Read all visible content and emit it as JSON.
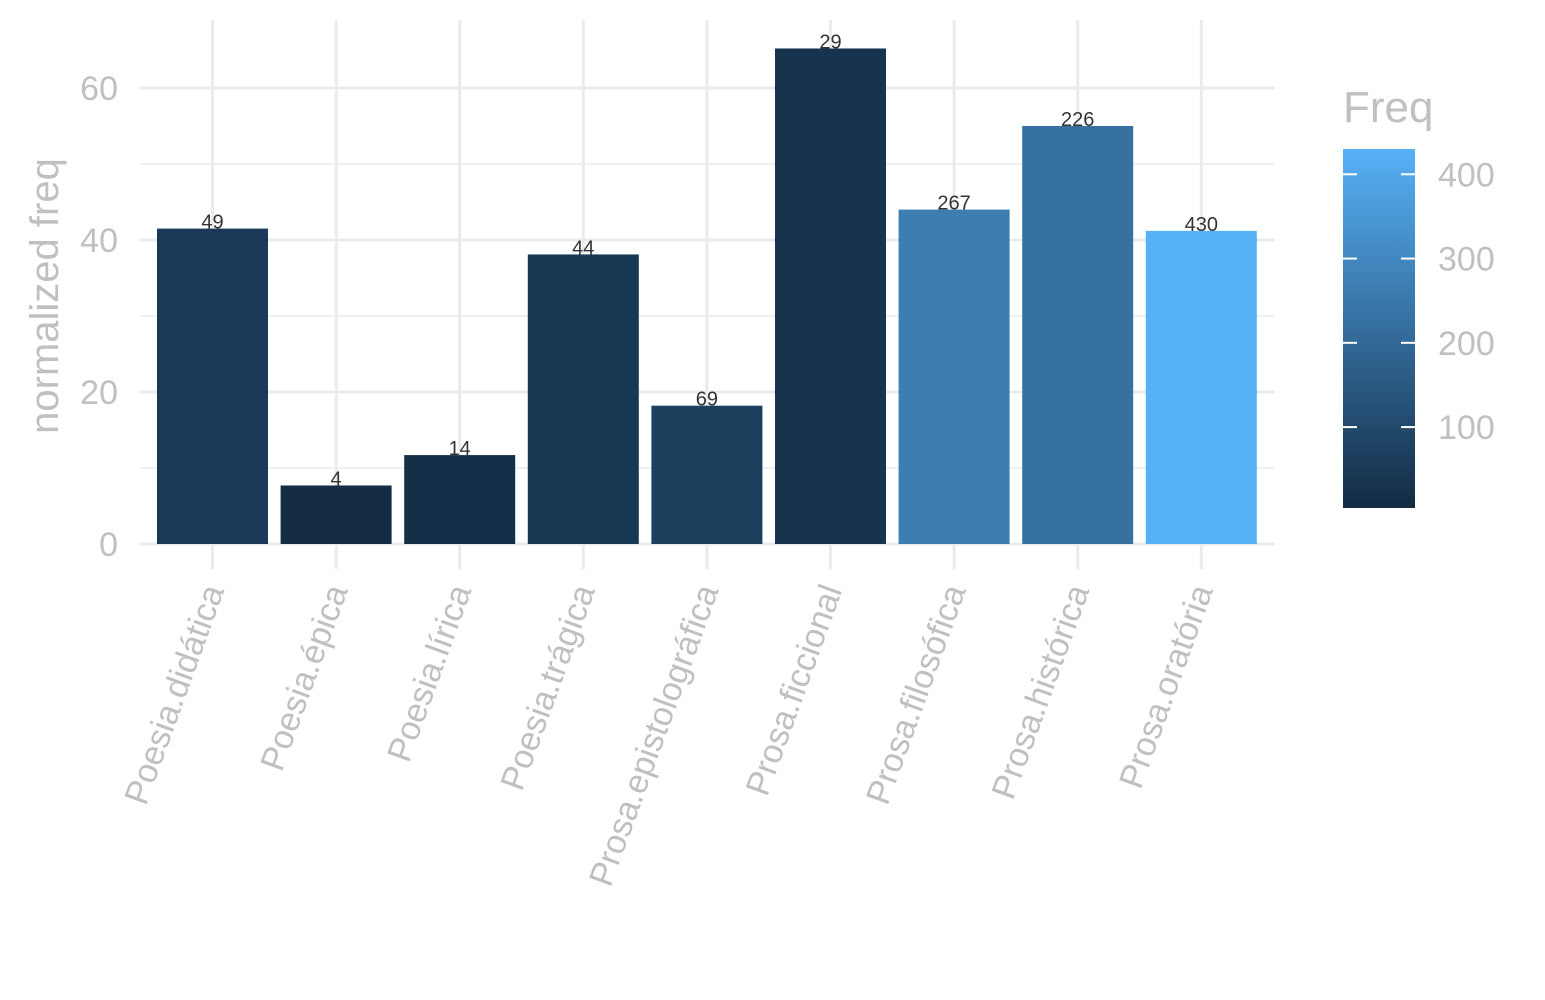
{
  "chart_data": {
    "type": "bar",
    "categories": [
      "Poesia.didática",
      "Poesia.épica",
      "Poesia.lírica",
      "Poesia.trágica",
      "Prosa.epistolográfica",
      "Prosa.ficcional",
      "Prosa.filosófica",
      "Prosa.histórica",
      "Prosa.oratória"
    ],
    "values": [
      41.5,
      7.7,
      11.7,
      38.1,
      18.2,
      65.2,
      44.0,
      55.0,
      41.2
    ],
    "freq": [
      49,
      4,
      14,
      44,
      69,
      29,
      267,
      226,
      430
    ],
    "xlabel": "",
    "ylabel": "normalized freq",
    "ylim": [
      0,
      68
    ],
    "yticks": [
      0,
      20,
      40,
      60
    ],
    "grid": true,
    "legend": {
      "title": "Freq",
      "placement": "right",
      "ticks": [
        100,
        200,
        300,
        400
      ],
      "range": [
        4,
        430
      ],
      "color_low": "#132B43",
      "color_high": "#56B1F7"
    }
  }
}
